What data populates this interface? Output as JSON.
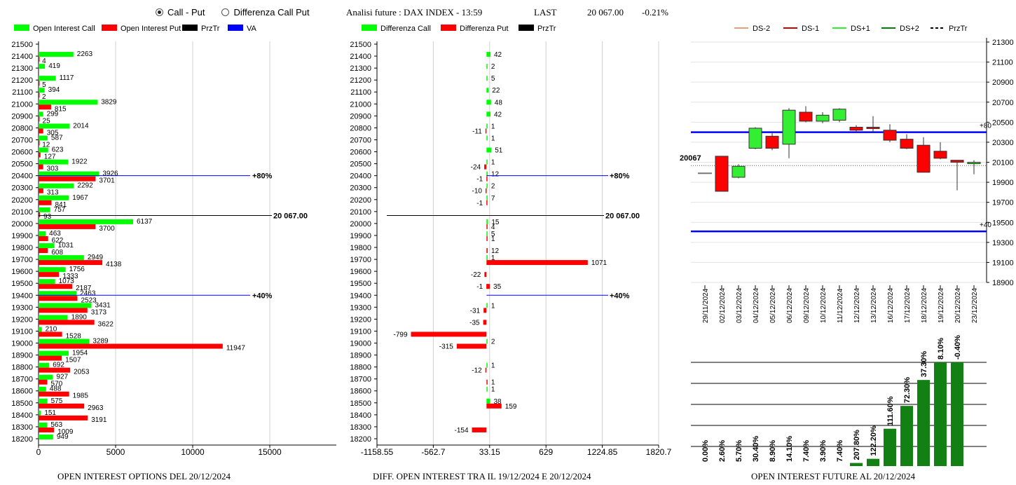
{
  "controls": {
    "radio_call_put": "Call - Put",
    "radio_diff": "Differenza Call Put",
    "selected": "call_put"
  },
  "header": {
    "title": "Analisi future : DAX INDEX - 13:59",
    "last_label": "LAST",
    "last_value": "20 067.00",
    "change": "-0.21%"
  },
  "captions": {
    "left": "OPEN INTEREST OPTIONS DEL 20/12/2024",
    "middle": "DIFF. OPEN INTEREST TRA IL 19/12/2024 E 20/12/2024",
    "right": "OPEN INTEREST FUTURE AL 20/12/2024"
  },
  "colors": {
    "call": "#00ff00",
    "put": "#ff0000",
    "prztr": "#000000",
    "va": "#0000ff",
    "ds_minus2": "#e8a07a",
    "ds_minus1": "#cc0000",
    "ds_plus1": "#33ee33",
    "ds_plus2": "#008000",
    "bar_green": "#128012"
  },
  "chart_data": [
    {
      "type": "bar",
      "orientation": "horizontal",
      "legend": [
        "Open Interest Call",
        "Open Interest Put",
        "PrzTr",
        "VA"
      ],
      "categories": [
        "21500",
        "21400",
        "21300",
        "21200",
        "21100",
        "21000",
        "20900",
        "20800",
        "20700",
        "20600",
        "20500",
        "20400",
        "20300",
        "20200",
        "20100",
        "20000",
        "19900",
        "19800",
        "19700",
        "19600",
        "19500",
        "19400",
        "19300",
        "19200",
        "19100",
        "19000",
        "18900",
        "18800",
        "18700",
        "18600",
        "18500",
        "18400",
        "18300",
        "18200"
      ],
      "series": [
        {
          "name": "Open Interest Call",
          "values": [
            null,
            2263,
            419,
            1117,
            394,
            3829,
            299,
            2014,
            587,
            623,
            1922,
            3926,
            2292,
            1967,
            757,
            6137,
            463,
            1031,
            2949,
            1756,
            1073,
            2463,
            3431,
            1890,
            210,
            3289,
            1954,
            692,
            927,
            488,
            575,
            151,
            563,
            949
          ]
        },
        {
          "name": "Open Interest Put",
          "values": [
            null,
            4,
            null,
            5,
            2,
            815,
            25,
            305,
            12,
            127,
            303,
            3701,
            313,
            841,
            93,
            3700,
            622,
            608,
            4138,
            1333,
            2187,
            2523,
            3173,
            3622,
            1528,
            11947,
            1507,
            2053,
            570,
            1985,
            2963,
            3191,
            1009,
            null
          ]
        }
      ],
      "xticks": [
        "0",
        "5000",
        "10000",
        "15000"
      ],
      "xlim": [
        0,
        20000
      ],
      "ref_lines": [
        {
          "label": "+80%",
          "level": "20400"
        },
        {
          "label": "20 067.00",
          "level": "20067"
        },
        {
          "label": "+40%",
          "level": "19400"
        }
      ]
    },
    {
      "type": "bar",
      "orientation": "horizontal",
      "legend": [
        "Differenza Call",
        "Differenza Put",
        "PrzTr"
      ],
      "categories": [
        "21500",
        "21400",
        "21300",
        "21200",
        "21100",
        "21000",
        "20900",
        "20800",
        "20700",
        "20600",
        "20500",
        "20400",
        "20300",
        "20200",
        "20100",
        "20000",
        "19900",
        "19800",
        "19700",
        "19600",
        "19500",
        "19400",
        "19300",
        "19200",
        "19100",
        "19000",
        "18900",
        "18800",
        "18700",
        "18600",
        "18500",
        "18400",
        "18300",
        "18200"
      ],
      "series": [
        {
          "name": "Differenza Call",
          "values": [
            null,
            42,
            2,
            5,
            22,
            48,
            42,
            1,
            1,
            51,
            1,
            12,
            2,
            7,
            null,
            15,
            5,
            null,
            1,
            null,
            null,
            null,
            1,
            null,
            null,
            2,
            null,
            1,
            null,
            1,
            38,
            null,
            null,
            null
          ]
        },
        {
          "name": "Differenza Put",
          "values": [
            null,
            null,
            null,
            null,
            null,
            null,
            null,
            -11,
            null,
            null,
            -24,
            -1,
            -10,
            -1,
            null,
            4,
            1,
            12,
            1071,
            -22,
            -1,
            null,
            -31,
            -35,
            -799,
            -315,
            null,
            -12,
            1,
            null,
            159,
            null,
            -154,
            null
          ]
        },
        {
          "name": "Differenza Put (2)",
          "values": [
            null,
            null,
            null,
            null,
            null,
            null,
            null,
            null,
            null,
            null,
            null,
            null,
            null,
            null,
            null,
            null,
            null,
            null,
            null,
            null,
            35,
            null,
            null,
            null,
            null,
            null,
            null,
            null,
            null,
            null,
            null,
            null,
            null,
            null
          ]
        }
      ],
      "xticks": [
        "-1158.55",
        "-562.7",
        "33.15",
        "629",
        "1224.85",
        "1820.7"
      ],
      "xlim": [
        -1158.55,
        1820.7
      ],
      "ref_lines": [
        {
          "label": "+80%",
          "level": "20400"
        },
        {
          "label": "20 067.00",
          "level": "20067"
        },
        {
          "label": "+40%",
          "level": "19400"
        }
      ]
    },
    {
      "type": "candlestick",
      "legend": [
        "DS-2",
        "DS-1",
        "DS+1",
        "DS+2",
        "PrzTr"
      ],
      "x": [
        "29/11/2024",
        "02/12/2024",
        "03/12/2024",
        "04/12/2024",
        "05/12/2024",
        "06/12/2024",
        "09/12/2024",
        "10/12/2024",
        "11/12/2024",
        "12/12/2024",
        "13/12/2024",
        "16/12/2024",
        "17/12/2024",
        "18/12/2024",
        "19/12/2024",
        "20/12/2024",
        "23/12/2024"
      ],
      "open": [
        19990,
        20160,
        19950,
        20240,
        20360,
        20280,
        20600,
        20510,
        20520,
        20450,
        20450,
        20420,
        20330,
        20270,
        20210,
        20120,
        20100
      ],
      "close": [
        19990,
        19810,
        20060,
        20440,
        20240,
        20620,
        20510,
        20570,
        20630,
        20420,
        20440,
        20320,
        20240,
        20000,
        20140,
        20100,
        20100
      ],
      "high": [
        19990,
        20160,
        20080,
        20450,
        20400,
        20640,
        20660,
        20600,
        20640,
        20470,
        20560,
        20480,
        20380,
        20350,
        20300,
        20120,
        20120
      ],
      "low": [
        19990,
        19810,
        19940,
        20230,
        20220,
        20140,
        20500,
        20490,
        20500,
        20390,
        20390,
        20300,
        20230,
        20000,
        20130,
        19820,
        19980
      ],
      "yticks": [
        "21300",
        "21100",
        "20900",
        "20700",
        "20500",
        "20300",
        "20100",
        "19900",
        "19700",
        "19500",
        "19300",
        "19100",
        "18900"
      ],
      "ylim": [
        18900,
        21300
      ],
      "ref_lines": [
        {
          "label": "+80",
          "value": 20400
        },
        {
          "label": "+40",
          "value": 19410
        }
      ],
      "price_label": "20067",
      "price_value": 20067
    },
    {
      "type": "bar",
      "categories": [
        "29/11/2024",
        "02/12/2024",
        "03/12/2024",
        "04/12/2024",
        "05/12/2024",
        "06/12/2024",
        "09/12/2024",
        "10/12/2024",
        "11/12/2024",
        "12/12/2024",
        "13/12/2024",
        "16/12/2024",
        "17/12/2024",
        "18/12/2024",
        "19/12/2024",
        "20/12/2024",
        "23/12/2024"
      ],
      "labels": [
        "0.00%",
        "2.60%",
        "5.70%",
        "30.40%",
        "8.90%",
        "14.10%",
        "7.40%",
        "3.90%",
        "7.40%",
        "207.80%",
        "122.20%",
        "111.60%",
        "72.30%",
        "37.30%",
        "8.10%",
        "-0.40%",
        ""
      ],
      "values": [
        0,
        0,
        0,
        0,
        0,
        0,
        0,
        0,
        0,
        3,
        7,
        36,
        58,
        83,
        100,
        100,
        0
      ],
      "ylim": [
        0,
        100
      ]
    }
  ]
}
